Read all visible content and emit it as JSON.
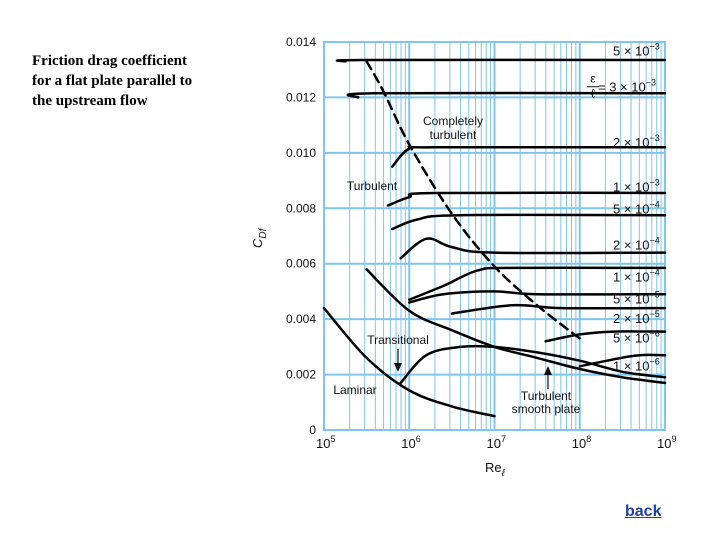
{
  "caption": {
    "line1": "Friction drag coefficient",
    "line2": "for a flat plate parallel to",
    "line3": "the upstream flow"
  },
  "back_label": "back",
  "colors": {
    "grid": "#7ec6ec",
    "curve": "#000000"
  },
  "chart_data": {
    "type": "line",
    "title": "Friction drag coefficient for a flat plate parallel to the upstream flow",
    "xlabel": "Re",
    "xlabel_sub": "ℓ",
    "ylabel": "C",
    "ylabel_sub": "Df",
    "xscale": "log",
    "xlim": [
      5,
      9
    ],
    "ylim": [
      0,
      0.014
    ],
    "y_ticks": [
      {
        "v": 0,
        "label": "0"
      },
      {
        "v": 0.002,
        "label": "0.002"
      },
      {
        "v": 0.004,
        "label": "0.004"
      },
      {
        "v": 0.006,
        "label": "0.006"
      },
      {
        "v": 0.008,
        "label": "0.008"
      },
      {
        "v": 0.01,
        "label": "0.010"
      },
      {
        "v": 0.012,
        "label": "0.012"
      },
      {
        "v": 0.014,
        "label": "0.014"
      }
    ],
    "x_ticks": [
      {
        "v": 5,
        "base": "10",
        "exp": "5"
      },
      {
        "v": 6,
        "base": "10",
        "exp": "6"
      },
      {
        "v": 7,
        "base": "10",
        "exp": "7"
      },
      {
        "v": 8,
        "base": "10",
        "exp": "8"
      },
      {
        "v": 9,
        "base": "10",
        "exp": "9"
      }
    ],
    "series": [
      {
        "name": "5 × 10^-3",
        "kind": "roughness",
        "points": [
          [
            5.25,
            0.0133
          ],
          [
            5.5,
            0.01335
          ],
          [
            9.0,
            0.01335
          ]
        ]
      },
      {
        "name": "3 × 10^-3",
        "kind": "roughness",
        "points": [
          [
            5.4,
            0.012
          ],
          [
            5.6,
            0.01215
          ],
          [
            9.0,
            0.01215
          ]
        ]
      },
      {
        "name": "2 × 10^-3",
        "kind": "roughness",
        "points": [
          [
            5.8,
            0.0095
          ],
          [
            6.0,
            0.01015
          ],
          [
            6.3,
            0.0102
          ],
          [
            9.0,
            0.0102
          ]
        ]
      },
      {
        "name": "1 × 10^-3",
        "kind": "roughness",
        "points": [
          [
            5.75,
            0.0081
          ],
          [
            6.0,
            0.0084
          ],
          [
            6.3,
            0.00855
          ],
          [
            9.0,
            0.00855
          ]
        ]
      },
      {
        "name": "5 × 10^-4",
        "kind": "roughness",
        "points": [
          [
            5.8,
            0.00725
          ],
          [
            6.1,
            0.0076
          ],
          [
            6.6,
            0.00775
          ],
          [
            9.0,
            0.00775
          ]
        ]
      },
      {
        "name": "2 × 10^-4",
        "kind": "roughness",
        "points": [
          [
            5.9,
            0.0062
          ],
          [
            6.2,
            0.0069
          ],
          [
            6.5,
            0.0066
          ],
          [
            7.0,
            0.0064
          ],
          [
            9.0,
            0.0064
          ]
        ]
      },
      {
        "name": "1 × 10^-4",
        "kind": "roughness",
        "points": [
          [
            6.0,
            0.0047
          ],
          [
            6.4,
            0.0052
          ],
          [
            6.8,
            0.00575
          ],
          [
            7.2,
            0.00585
          ],
          [
            9.0,
            0.00585
          ]
        ]
      },
      {
        "name": "5 × 10^-5",
        "kind": "roughness",
        "points": [
          [
            6.0,
            0.0046
          ],
          [
            6.4,
            0.0049
          ],
          [
            7.0,
            0.005
          ],
          [
            7.5,
            0.0049
          ],
          [
            9.0,
            0.0049
          ]
        ]
      },
      {
        "name": "2 × 10^-5",
        "kind": "roughness",
        "points": [
          [
            6.5,
            0.0042
          ],
          [
            7.2,
            0.0045
          ],
          [
            7.8,
            0.0044
          ],
          [
            9.0,
            0.0044
          ]
        ]
      },
      {
        "name": "5 × 10^-6",
        "kind": "roughness",
        "points": [
          [
            7.6,
            0.0032
          ],
          [
            8.0,
            0.00345
          ],
          [
            8.4,
            0.00355
          ],
          [
            9.0,
            0.00355
          ]
        ]
      },
      {
        "name": "1 × 10^-6",
        "kind": "roughness",
        "points": [
          [
            8.0,
            0.0023
          ],
          [
            8.4,
            0.00255
          ],
          [
            8.7,
            0.0027
          ],
          [
            9.0,
            0.0027
          ]
        ]
      },
      {
        "name": "Turbulent smooth plate",
        "kind": "smooth",
        "points": [
          [
            5.5,
            0.0058
          ],
          [
            6.0,
            0.0043
          ],
          [
            6.5,
            0.0036
          ],
          [
            7.0,
            0.003
          ],
          [
            7.5,
            0.0026
          ],
          [
            8.0,
            0.0022
          ],
          [
            8.5,
            0.0019
          ],
          [
            9.0,
            0.0017
          ]
        ]
      },
      {
        "name": "Transitional",
        "kind": "transitional",
        "points": [
          [
            5.9,
            0.0017
          ],
          [
            6.2,
            0.0027
          ],
          [
            6.6,
            0.003
          ],
          [
            7.0,
            0.003
          ],
          [
            7.5,
            0.0028
          ],
          [
            8.0,
            0.0025
          ],
          [
            8.5,
            0.0021
          ],
          [
            9.0,
            0.0019
          ]
        ]
      },
      {
        "name": "Laminar",
        "kind": "laminar",
        "points": [
          [
            5.0,
            0.0044
          ],
          [
            5.5,
            0.0026
          ],
          [
            6.0,
            0.00143
          ],
          [
            6.5,
            0.00085
          ],
          [
            7.0,
            0.0005
          ]
        ]
      },
      {
        "name": "Completely turbulent",
        "kind": "dashed",
        "points": [
          [
            5.5,
            0.0133
          ],
          [
            5.7,
            0.0122
          ],
          [
            6.0,
            0.0103
          ],
          [
            6.5,
            0.0078
          ],
          [
            7.0,
            0.0059
          ],
          [
            7.5,
            0.0045
          ],
          [
            8.0,
            0.0033
          ]
        ]
      }
    ],
    "roughness_labels": [
      {
        "y": 0.01365,
        "base": "5 × 10",
        "exp": "−3"
      },
      {
        "y": 0.01235,
        "base": "= 3 × 10",
        "exp": "−3",
        "prefix": true
      },
      {
        "y": 0.01035,
        "base": "2 × 10",
        "exp": "−3"
      },
      {
        "y": 0.00875,
        "base": "1 × 10",
        "exp": "−3"
      },
      {
        "y": 0.00795,
        "base": "5 × 10",
        "exp": "−4"
      },
      {
        "y": 0.00665,
        "base": "2 × 10",
        "exp": "−4"
      },
      {
        "y": 0.0055,
        "base": "1 × 10",
        "exp": "−4"
      },
      {
        "y": 0.0047,
        "base": "5 × 10",
        "exp": "−5"
      },
      {
        "y": 0.004,
        "base": "2 × 10",
        "exp": "−5"
      },
      {
        "y": 0.0033,
        "base": "5 × 10",
        "exp": "−6"
      },
      {
        "y": 0.0023,
        "base": "1 × 10",
        "exp": "−6"
      }
    ],
    "epsilon_fraction": {
      "num": "ε",
      "den": "ℓ"
    },
    "annotations": {
      "completely_turbulent": [
        "Completely",
        "turbulent"
      ],
      "turbulent": "Turbulent",
      "transitional": "Transitional",
      "laminar": "Laminar",
      "turbulent_smooth": [
        "Turbulent",
        "smooth plate"
      ]
    }
  }
}
